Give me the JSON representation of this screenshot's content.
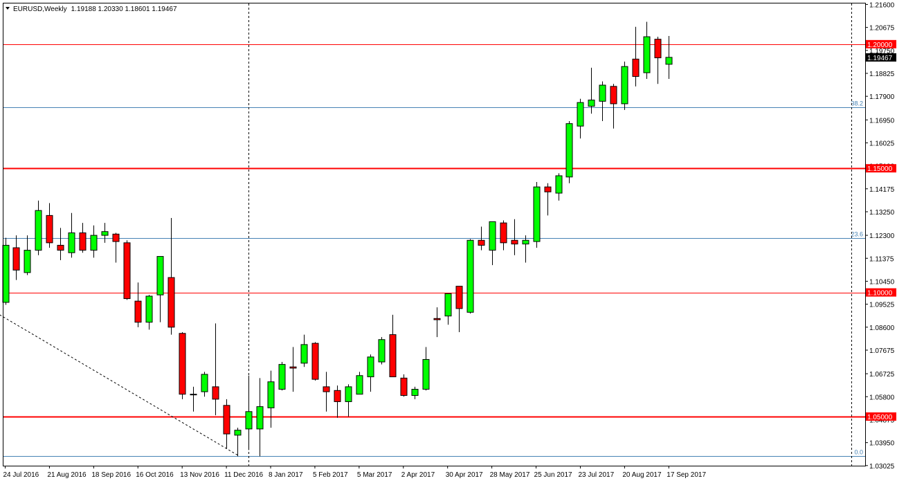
{
  "header": {
    "symbol": "EURUSD,Weekly",
    "ohlc": "1.19188 1.20330 1.18601 1.19467"
  },
  "chart_data": {
    "type": "candlestick",
    "title": "EURUSD,Weekly",
    "ylim": [
      1.0302,
      1.2164
    ],
    "y_ticks": [
      "1.21600",
      "1.20675",
      "1.19750",
      "1.18825",
      "1.17900",
      "1.16950",
      "1.16025",
      "1.15100",
      "1.14175",
      "1.13250",
      "1.12300",
      "1.11375",
      "1.10450",
      "1.09525",
      "1.08600",
      "1.07675",
      "1.06725",
      "1.05800",
      "1.04875",
      "1.03950",
      "1.03025"
    ],
    "x_ticks": [
      {
        "label": "24 Jul 2016",
        "index": 0
      },
      {
        "label": "21 Aug 2016",
        "index": 4
      },
      {
        "label": "18 Sep 2016",
        "index": 8
      },
      {
        "label": "16 Oct 2016",
        "index": 12
      },
      {
        "label": "13 Nov 2016",
        "index": 16
      },
      {
        "label": "11 Dec 2016",
        "index": 20
      },
      {
        "label": "8 Jan 2017",
        "index": 24
      },
      {
        "label": "5 Feb 2017",
        "index": 28
      },
      {
        "label": "5 Mar 2017",
        "index": 32
      },
      {
        "label": "2 Apr 2017",
        "index": 36
      },
      {
        "label": "30 Apr 2017",
        "index": 40
      },
      {
        "label": "28 May 2017",
        "index": 44
      },
      {
        "label": "25 Jun 2017",
        "index": 48
      },
      {
        "label": "23 Jul 2017",
        "index": 52
      },
      {
        "label": "20 Aug 2017",
        "index": 56
      },
      {
        "label": "17 Sep 2017",
        "index": 60
      }
    ],
    "candles": [
      {
        "o": 1.096,
        "h": 1.122,
        "l": 1.095,
        "c": 1.119
      },
      {
        "o": 1.118,
        "h": 1.123,
        "l": 1.105,
        "c": 1.109
      },
      {
        "o": 1.108,
        "h": 1.123,
        "l": 1.107,
        "c": 1.117
      },
      {
        "o": 1.117,
        "h": 1.137,
        "l": 1.115,
        "c": 1.133
      },
      {
        "o": 1.131,
        "h": 1.136,
        "l": 1.118,
        "c": 1.12
      },
      {
        "o": 1.119,
        "h": 1.126,
        "l": 1.113,
        "c": 1.117
      },
      {
        "o": 1.116,
        "h": 1.132,
        "l": 1.114,
        "c": 1.124
      },
      {
        "o": 1.124,
        "h": 1.128,
        "l": 1.116,
        "c": 1.117
      },
      {
        "o": 1.117,
        "h": 1.127,
        "l": 1.114,
        "c": 1.123
      },
      {
        "o": 1.123,
        "h": 1.128,
        "l": 1.12,
        "c": 1.1245
      },
      {
        "o": 1.1235,
        "h": 1.124,
        "l": 1.112,
        "c": 1.1205
      },
      {
        "o": 1.12,
        "h": 1.121,
        "l": 1.097,
        "c": 1.0975
      },
      {
        "o": 1.0965,
        "h": 1.104,
        "l": 1.086,
        "c": 1.088
      },
      {
        "o": 1.088,
        "h": 1.099,
        "l": 1.085,
        "c": 1.0985
      },
      {
        "o": 1.099,
        "h": 1.114,
        "l": 1.088,
        "c": 1.1145
      },
      {
        "o": 1.106,
        "h": 1.13,
        "l": 1.083,
        "c": 1.086
      },
      {
        "o": 1.0835,
        "h": 1.084,
        "l": 1.057,
        "c": 1.059
      },
      {
        "o": 1.059,
        "h": 1.062,
        "l": 1.052,
        "c": 1.059
      },
      {
        "o": 1.06,
        "h": 1.068,
        "l": 1.058,
        "c": 1.067
      },
      {
        "o": 1.062,
        "h": 1.0875,
        "l": 1.0505,
        "c": 1.057
      },
      {
        "o": 1.0545,
        "h": 1.057,
        "l": 1.037,
        "c": 1.043
      },
      {
        "o": 1.0425,
        "h": 1.0455,
        "l": 1.034,
        "c": 1.0445
      },
      {
        "o": 1.045,
        "h": 1.0665,
        "l": 1.0365,
        "c": 1.052
      },
      {
        "o": 1.045,
        "h": 1.0655,
        "l": 1.034,
        "c": 1.054
      },
      {
        "o": 1.0535,
        "h": 1.0685,
        "l": 1.0455,
        "c": 1.064
      },
      {
        "o": 1.061,
        "h": 1.072,
        "l": 1.0605,
        "c": 1.071
      },
      {
        "o": 1.07,
        "h": 1.078,
        "l": 1.06,
        "c": 1.0695
      },
      {
        "o": 1.0715,
        "h": 1.083,
        "l": 1.07,
        "c": 1.079
      },
      {
        "o": 1.0795,
        "h": 1.08,
        "l": 1.0645,
        "c": 1.065
      },
      {
        "o": 1.062,
        "h": 1.068,
        "l": 1.052,
        "c": 1.06
      },
      {
        "o": 1.0605,
        "h": 1.0625,
        "l": 1.0495,
        "c": 1.056
      },
      {
        "o": 1.056,
        "h": 1.063,
        "l": 1.05,
        "c": 1.062
      },
      {
        "o": 1.059,
        "h": 1.068,
        "l": 1.059,
        "c": 1.0665
      },
      {
        "o": 1.066,
        "h": 1.075,
        "l": 1.06,
        "c": 1.074
      },
      {
        "o": 1.072,
        "h": 1.082,
        "l": 1.071,
        "c": 1.081
      },
      {
        "o": 1.083,
        "h": 1.091,
        "l": 1.066,
        "c": 1.066
      },
      {
        "o": 1.0655,
        "h": 1.067,
        "l": 1.058,
        "c": 1.0585
      },
      {
        "o": 1.0585,
        "h": 1.062,
        "l": 1.057,
        "c": 1.061
      },
      {
        "o": 1.061,
        "h": 1.078,
        "l": 1.0605,
        "c": 1.073
      },
      {
        "o": 1.0895,
        "h": 1.094,
        "l": 1.082,
        "c": 1.089
      },
      {
        "o": 1.0905,
        "h": 1.0995,
        "l": 1.087,
        "c": 1.0995
      },
      {
        "o": 1.1025,
        "h": 1.1025,
        "l": 1.084,
        "c": 1.0935
      },
      {
        "o": 1.092,
        "h": 1.1215,
        "l": 1.0915,
        "c": 1.121
      },
      {
        "o": 1.121,
        "h": 1.1265,
        "l": 1.117,
        "c": 1.119
      },
      {
        "o": 1.117,
        "h": 1.1285,
        "l": 1.111,
        "c": 1.1285
      },
      {
        "o": 1.128,
        "h": 1.129,
        "l": 1.117,
        "c": 1.12
      },
      {
        "o": 1.121,
        "h": 1.1295,
        "l": 1.115,
        "c": 1.1195
      },
      {
        "o": 1.1195,
        "h": 1.123,
        "l": 1.112,
        "c": 1.121
      },
      {
        "o": 1.1205,
        "h": 1.1445,
        "l": 1.118,
        "c": 1.1425
      },
      {
        "o": 1.1425,
        "h": 1.144,
        "l": 1.131,
        "c": 1.1405
      },
      {
        "o": 1.14,
        "h": 1.148,
        "l": 1.137,
        "c": 1.147
      },
      {
        "o": 1.1465,
        "h": 1.169,
        "l": 1.144,
        "c": 1.168
      },
      {
        "o": 1.167,
        "h": 1.178,
        "l": 1.162,
        "c": 1.1765
      },
      {
        "o": 1.175,
        "h": 1.1905,
        "l": 1.172,
        "c": 1.1775
      },
      {
        "o": 1.177,
        "h": 1.185,
        "l": 1.169,
        "c": 1.1835
      },
      {
        "o": 1.183,
        "h": 1.184,
        "l": 1.166,
        "c": 1.176
      },
      {
        "o": 1.176,
        "h": 1.193,
        "l": 1.1735,
        "c": 1.191
      },
      {
        "o": 1.194,
        "h": 1.207,
        "l": 1.183,
        "c": 1.187
      },
      {
        "o": 1.1885,
        "h": 1.209,
        "l": 1.186,
        "c": 1.203
      },
      {
        "o": 1.202,
        "h": 1.203,
        "l": 1.184,
        "c": 1.1945
      },
      {
        "o": 1.1919,
        "h": 1.2033,
        "l": 1.186,
        "c": 1.1947
      }
    ],
    "levels": [
      {
        "value": 1.2,
        "label": "1.20000",
        "heavy": false
      },
      {
        "value": 1.15,
        "label": "1.15000",
        "heavy": true
      },
      {
        "value": 1.1,
        "label": "1.10000",
        "heavy": false
      },
      {
        "value": 1.05,
        "label": "1.05000",
        "heavy": true
      }
    ],
    "current_price": {
      "value": 1.19467,
      "label": "1.19467"
    },
    "fib_levels": [
      {
        "value": 1.1745,
        "label": "38.2"
      },
      {
        "value": 1.122,
        "label": "23.6"
      },
      {
        "value": 1.034,
        "label": "0.0"
      }
    ],
    "vertical_markers": [
      22,
      76.5
    ],
    "trendline": {
      "from": {
        "index": -0.5,
        "value": 1.091
      },
      "to": {
        "index": 21,
        "value": 1.0345
      }
    },
    "colors": {
      "bull": "#00ff00",
      "bear": "#ff0000",
      "outline": "#000000",
      "level": "#ff0000",
      "fib": "#4682b4",
      "axis": "#000000",
      "background": "#ffffff"
    }
  }
}
